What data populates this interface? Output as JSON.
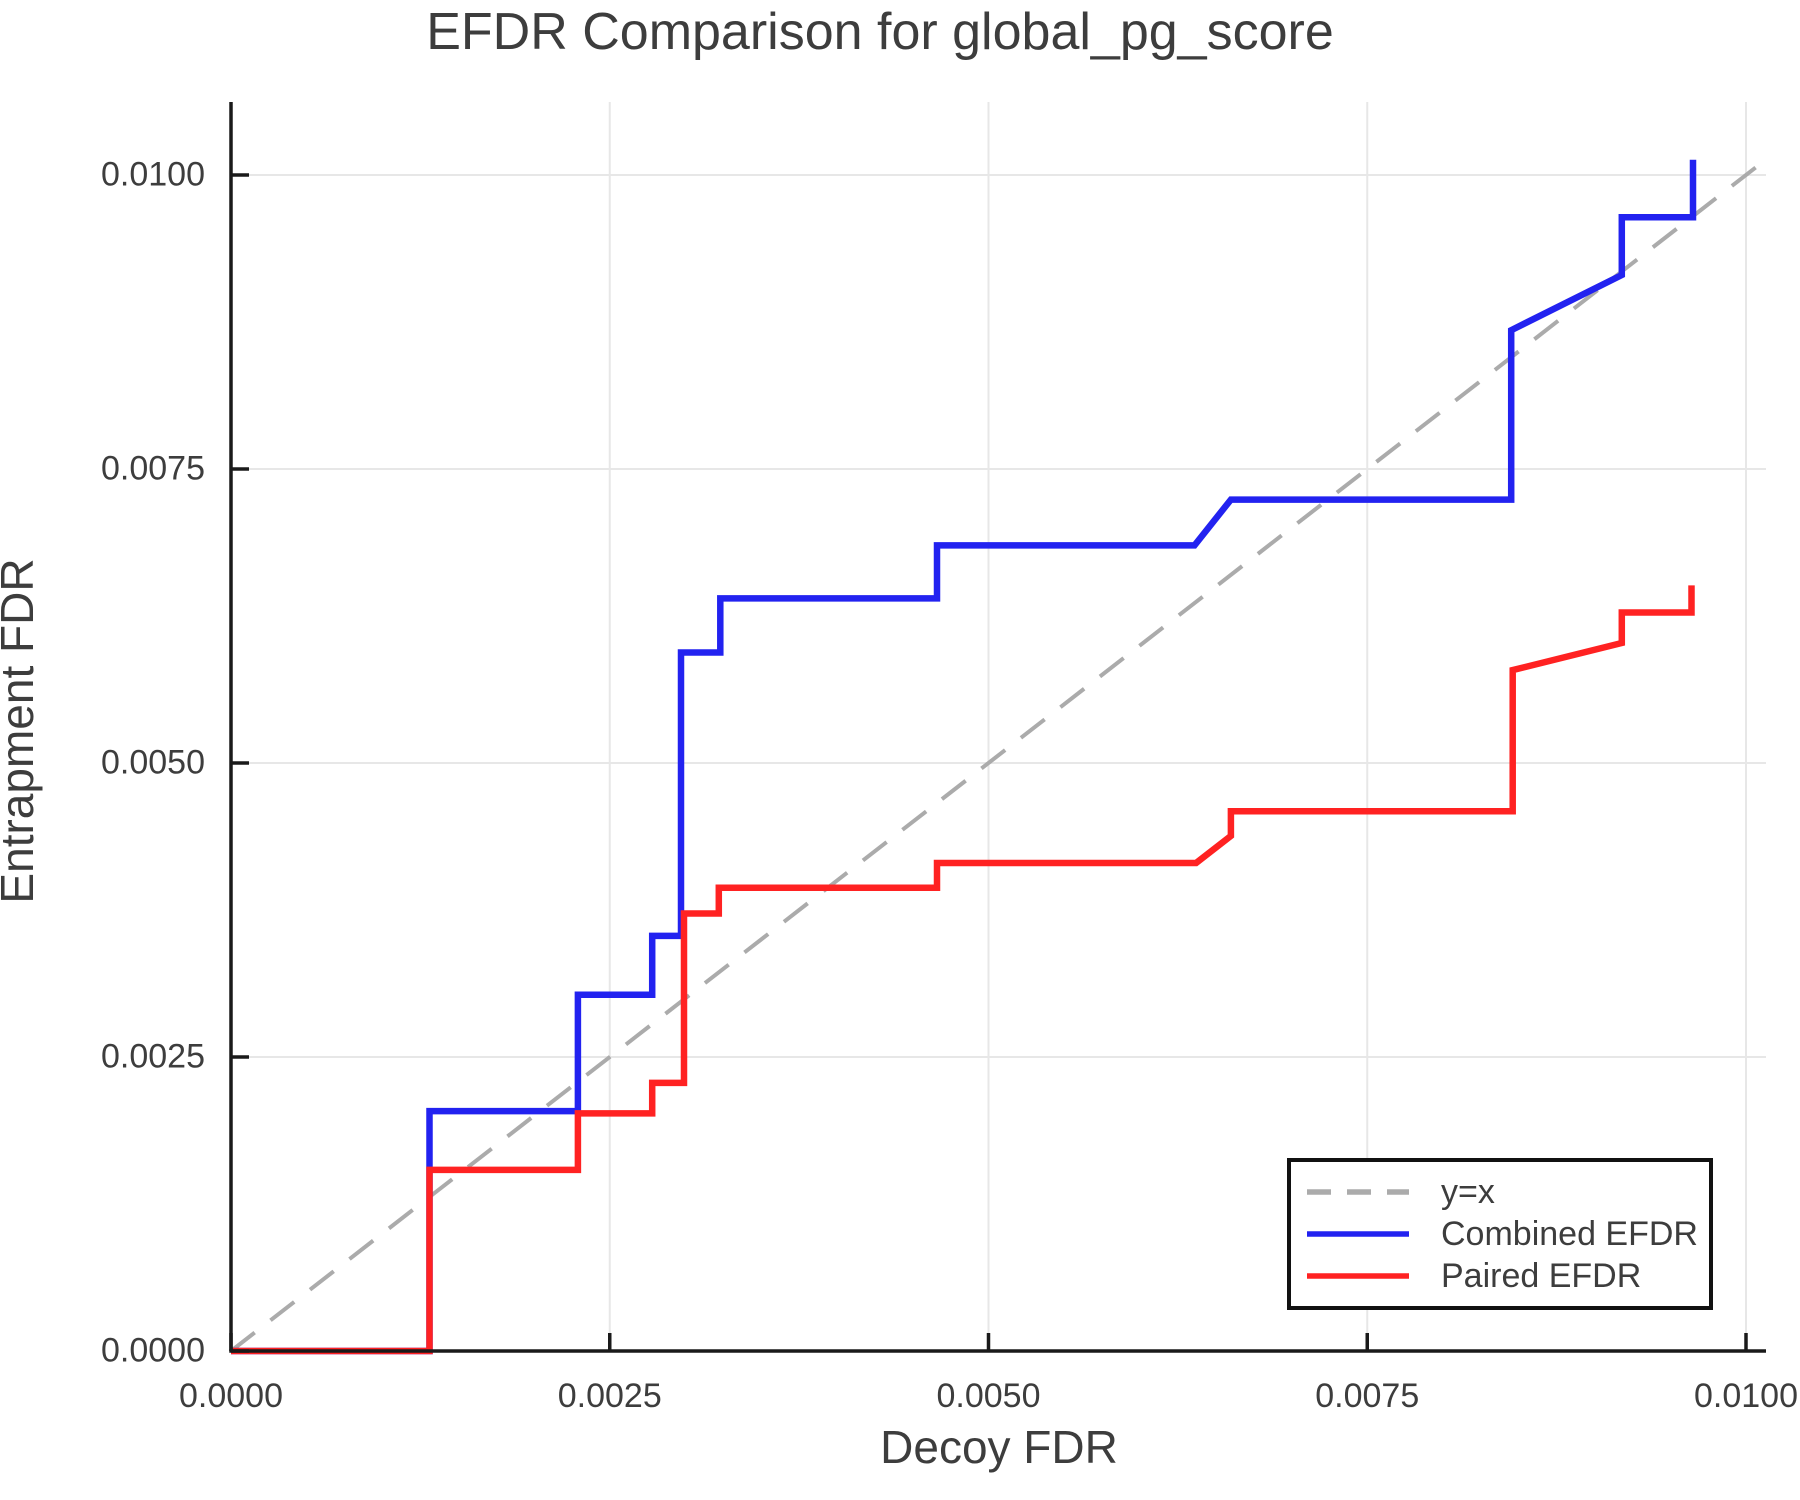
{
  "title": "EFDR Comparison for global_pg_score",
  "colors": {
    "combined": "#2222f0",
    "paired": "#ff2222",
    "reference": "#ababab",
    "grid": "#e7e7e7",
    "spine": "#1a1a1a",
    "text": "#3d3d3d"
  },
  "chart_data": {
    "type": "line",
    "title": "EFDR Comparison for global_pg_score",
    "xlabel": "Decoy FDR",
    "ylabel": "Entrapment FDR",
    "xlim": [
      0,
      0.01013
    ],
    "ylim": [
      0,
      0.01062
    ],
    "grid": true,
    "legend_position": "bottom-right",
    "x_ticks": {
      "values": [
        0,
        0.0025,
        0.005,
        0.0075,
        0.01
      ],
      "labels": [
        "0.0000",
        "0.0025",
        "0.0050",
        "0.0075",
        "0.0100"
      ]
    },
    "y_ticks": {
      "values": [
        0,
        0.0025,
        0.005,
        0.0075,
        0.01
      ],
      "labels": [
        "0.0000",
        "0.0025",
        "0.0050",
        "0.0075",
        "0.0100"
      ]
    },
    "series": [
      {
        "name": "y=x",
        "role": "reference-line",
        "style": "dashed",
        "color": "#ababab",
        "width": 4,
        "x": [
          0,
          0.01013
        ],
        "y": [
          0,
          0.01013
        ]
      },
      {
        "name": "Combined EFDR",
        "role": "data-series",
        "style": "solid",
        "color": "#2222f0",
        "width": 6.5,
        "x": [
          0,
          0.00131,
          0.00131,
          0.00229,
          0.00229,
          0.00278,
          0.00278,
          0.00297,
          0.00297,
          0.00323,
          0.00323,
          0.00466,
          0.00466,
          0.00636,
          0.0066,
          0.00845,
          0.00845,
          0.00918,
          0.00918,
          0.00965,
          0.00965
        ],
        "y": [
          0,
          0,
          0.00204,
          0.00204,
          0.00303,
          0.00303,
          0.00353,
          0.00353,
          0.00594,
          0.00594,
          0.0064,
          0.0064,
          0.00685,
          0.00685,
          0.00724,
          0.00724,
          0.00868,
          0.00915,
          0.00964,
          0.00964,
          0.01013
        ]
      },
      {
        "name": "Paired EFDR",
        "role": "data-series",
        "style": "solid",
        "color": "#ff2222",
        "width": 6.5,
        "x": [
          0,
          0.00131,
          0.00131,
          0.00229,
          0.00229,
          0.00278,
          0.00278,
          0.00299,
          0.00299,
          0.00322,
          0.00322,
          0.00466,
          0.00466,
          0.00637,
          0.0066,
          0.0066,
          0.00846,
          0.00846,
          0.00918,
          0.00918,
          0.00964,
          0.00964
        ],
        "y": [
          0,
          0,
          0.00154,
          0.00154,
          0.00202,
          0.00202,
          0.00228,
          0.00228,
          0.00372,
          0.00372,
          0.00394,
          0.00394,
          0.00415,
          0.00415,
          0.00438,
          0.00459,
          0.00459,
          0.00579,
          0.00602,
          0.00628,
          0.00628,
          0.00651
        ]
      }
    ]
  }
}
